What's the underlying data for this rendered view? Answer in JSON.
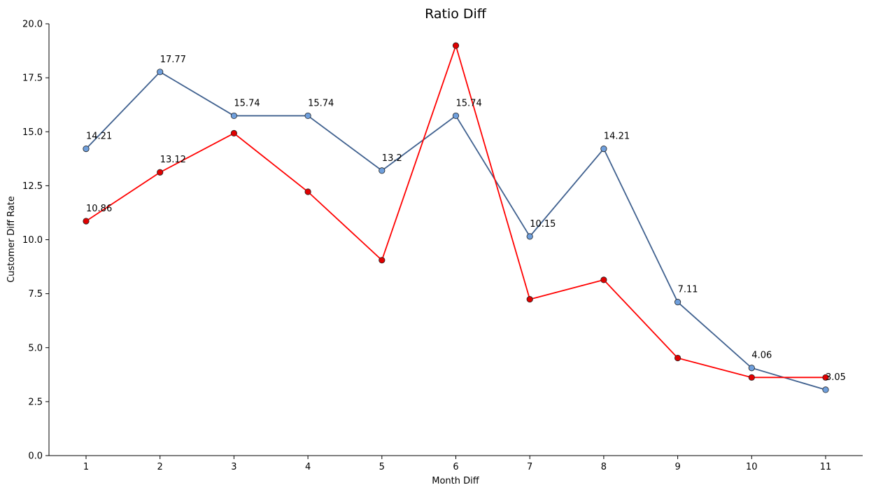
{
  "chart_data": {
    "type": "line",
    "title": "Ratio Diff",
    "xlabel": "Month Diff",
    "ylabel": "Customer Diff Rate",
    "x": [
      1,
      2,
      3,
      4,
      5,
      6,
      7,
      8,
      9,
      10,
      11
    ],
    "xticks": [
      "1",
      "2",
      "3",
      "4",
      "5",
      "6",
      "7",
      "8",
      "9",
      "10",
      "11"
    ],
    "ylim": [
      0,
      20
    ],
    "yticks": [
      "0.0",
      "2.5",
      "5.0",
      "7.5",
      "10.0",
      "12.5",
      "15.0",
      "17.5",
      "20.0"
    ],
    "grid": false,
    "series": [
      {
        "color": "#40618f",
        "marker_color": "#6f9fdc",
        "values": [
          14.21,
          17.77,
          15.74,
          15.74,
          13.2,
          15.74,
          10.15,
          14.21,
          7.11,
          4.06,
          3.05
        ],
        "labels": [
          "14.21",
          "17.77",
          "15.74",
          "15.74",
          "13.2",
          "15.74",
          "10.15",
          "14.21",
          "7.11",
          "4.06",
          "3.05"
        ]
      },
      {
        "color": "#ff0000",
        "marker_color": "#e00000",
        "values": [
          10.86,
          13.12,
          14.93,
          12.22,
          9.05,
          18.99,
          7.24,
          8.14,
          4.52,
          3.62,
          3.62
        ],
        "labels": [
          "10.86",
          "13.12",
          "",
          "",
          "",
          "",
          "",
          "",
          "",
          "",
          ""
        ]
      }
    ]
  }
}
